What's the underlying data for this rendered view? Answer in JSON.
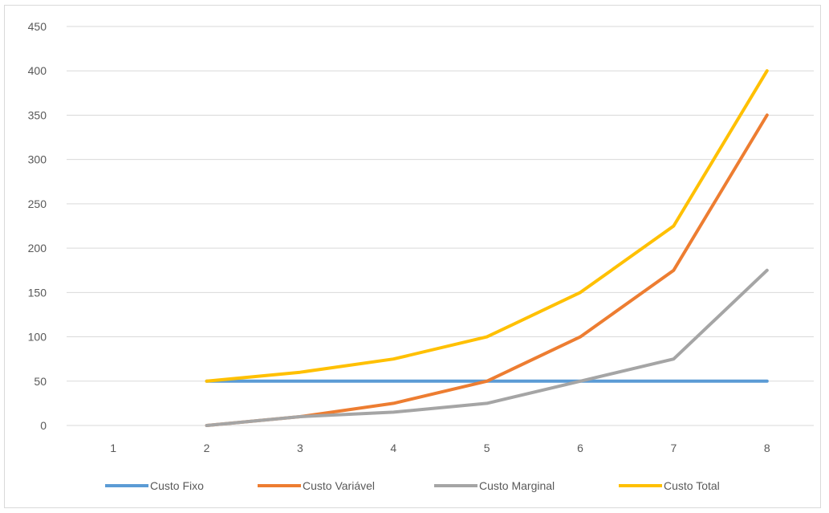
{
  "chart_data": {
    "type": "line",
    "categories": [
      "1",
      "2",
      "3",
      "4",
      "5",
      "6",
      "7",
      "8"
    ],
    "ylim": [
      0,
      450
    ],
    "yticks": [
      0,
      50,
      100,
      150,
      200,
      250,
      300,
      350,
      400,
      450
    ],
    "grid": true,
    "legend_position": "bottom",
    "series": [
      {
        "name": "Custo Fixo",
        "color": "#5b9bd5",
        "values": [
          null,
          50,
          50,
          50,
          50,
          50,
          50,
          50
        ]
      },
      {
        "name": "Custo Variável",
        "color": "#ed7d31",
        "values": [
          null,
          0,
          10,
          25,
          50,
          100,
          175,
          350
        ]
      },
      {
        "name": "Custo Marginal",
        "color": "#a5a5a5",
        "values": [
          null,
          0,
          10,
          15,
          25,
          50,
          75,
          175
        ]
      },
      {
        "name": "Custo Total",
        "color": "#ffc000",
        "values": [
          null,
          50,
          60,
          75,
          100,
          150,
          225,
          400
        ]
      }
    ]
  }
}
